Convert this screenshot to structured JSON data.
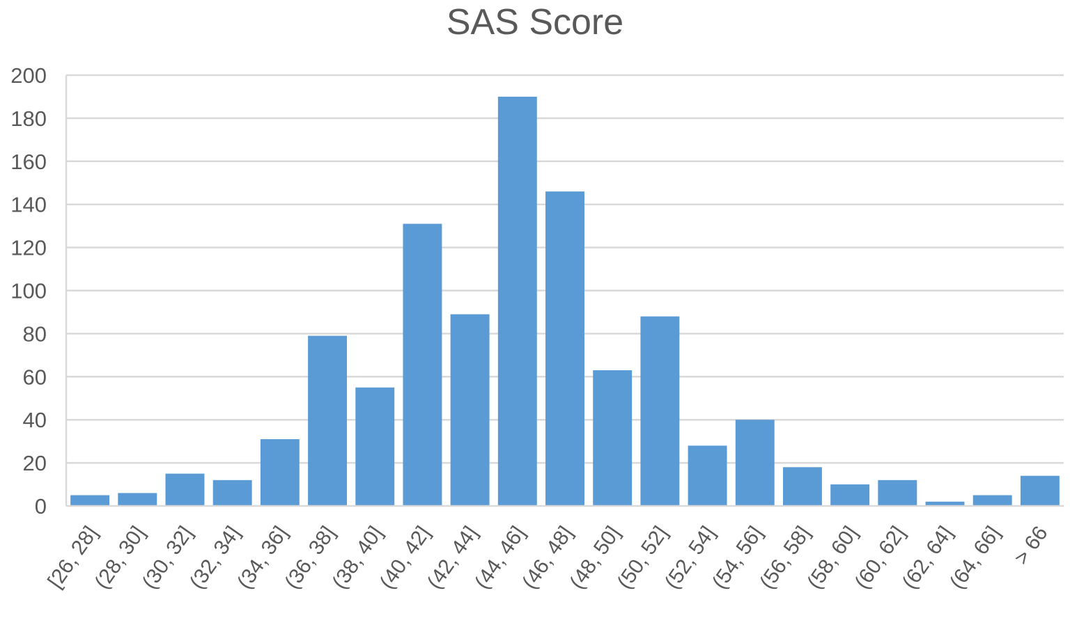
{
  "chart_data": {
    "type": "bar",
    "title": "SAS Score",
    "xlabel": "",
    "ylabel": "",
    "categories": [
      "[26, 28]",
      "(28, 30]",
      "(30, 32]",
      "(32, 34]",
      "(34, 36]",
      "(36, 38]",
      "(38, 40]",
      "(40, 42]",
      "(42, 44]",
      "(44, 46]",
      "(46, 48]",
      "(48, 50]",
      "(50, 52]",
      "(52, 54]",
      "(54, 56]",
      "(56, 58]",
      "(58, 60]",
      "(60, 62]",
      "(62, 64]",
      "(64, 66]",
      "> 66"
    ],
    "values": [
      5,
      6,
      15,
      12,
      31,
      79,
      55,
      131,
      89,
      190,
      146,
      63,
      88,
      28,
      40,
      18,
      10,
      12,
      2,
      5,
      14
    ],
    "ylim": [
      0,
      200
    ],
    "yticks": [
      0,
      20,
      40,
      60,
      80,
      100,
      120,
      140,
      160,
      180,
      200
    ],
    "grid": true,
    "legend": "none",
    "colors": {
      "bar": "#5b9bd5",
      "grid": "#d9d9d9",
      "axis": "#d9d9d9",
      "text": "#595959"
    }
  }
}
